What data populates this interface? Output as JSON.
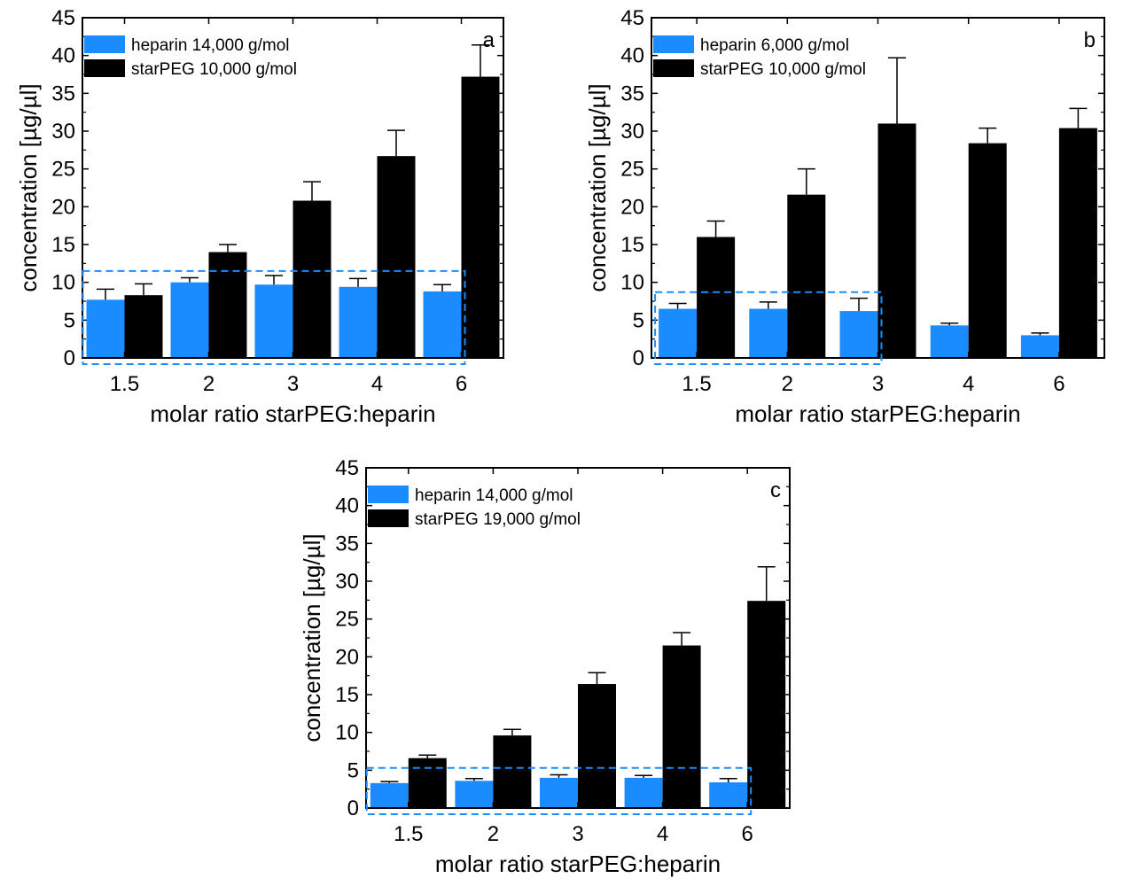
{
  "colors": {
    "heparin": "#1a8cff",
    "starpeg": "#000000",
    "highlight": "#1a8cff"
  },
  "chart_data": [
    {
      "type": "bar",
      "panel_letter": "a",
      "categories": [
        "1.5",
        "2",
        "3",
        "4",
        "6"
      ],
      "series": [
        {
          "name": "heparin 14,000 g/mol",
          "values": [
            7.7,
            10.0,
            9.7,
            9.4,
            8.8
          ],
          "errors": [
            1.4,
            0.6,
            1.2,
            1.1,
            0.9
          ]
        },
        {
          "name": "starPEG 10,000 g/mol",
          "values": [
            8.3,
            14.0,
            20.8,
            26.7,
            37.2
          ],
          "errors": [
            1.5,
            1.0,
            2.5,
            3.4,
            4.2
          ]
        }
      ],
      "xlabel": "molar ratio starPEG:heparin",
      "ylabel": "concentration [µg/µl]",
      "ylim": [
        0,
        45
      ],
      "yticks": [
        "0",
        "5",
        "10",
        "15",
        "20",
        "25",
        "30",
        "35",
        "40",
        "45"
      ],
      "legend_position": "top-left",
      "highlight_box": {
        "x_from": "1.5",
        "x_to": "6",
        "y_max": 11.5
      }
    },
    {
      "type": "bar",
      "panel_letter": "b",
      "categories": [
        "1.5",
        "2",
        "3",
        "4",
        "6"
      ],
      "series": [
        {
          "name": "heparin 6,000 g/mol",
          "values": [
            6.5,
            6.5,
            6.2,
            4.3,
            3.0
          ],
          "errors": [
            0.7,
            0.9,
            1.7,
            0.3,
            0.3
          ]
        },
        {
          "name": "starPEG 10,000 g/mol",
          "values": [
            16.0,
            21.6,
            31.0,
            28.4,
            30.4
          ],
          "errors": [
            2.1,
            3.4,
            8.7,
            2.0,
            2.6
          ]
        }
      ],
      "xlabel": "molar ratio starPEG:heparin",
      "ylabel": "concentration [µg/µl]",
      "ylim": [
        0,
        45
      ],
      "yticks": [
        "0",
        "5",
        "10",
        "15",
        "20",
        "25",
        "30",
        "35",
        "40",
        "45"
      ],
      "legend_position": "top-left",
      "highlight_box": {
        "x_from": "1.5",
        "x_to": "3",
        "y_max": 8.7
      }
    },
    {
      "type": "bar",
      "panel_letter": "c",
      "categories": [
        "1.5",
        "2",
        "3",
        "4",
        "6"
      ],
      "series": [
        {
          "name": "heparin 14,000 g/mol",
          "values": [
            3.3,
            3.6,
            4.0,
            4.0,
            3.4
          ],
          "errors": [
            0.2,
            0.3,
            0.4,
            0.3,
            0.5
          ]
        },
        {
          "name": "starPEG 19,000 g/mol",
          "values": [
            6.6,
            9.6,
            16.4,
            21.5,
            27.4
          ],
          "errors": [
            0.4,
            0.8,
            1.5,
            1.7,
            4.5
          ]
        }
      ],
      "xlabel": "molar ratio starPEG:heparin",
      "ylabel": "concentration [µg/µl]",
      "ylim": [
        0,
        45
      ],
      "yticks": [
        "0",
        "5",
        "10",
        "15",
        "20",
        "25",
        "30",
        "35",
        "40",
        "45"
      ],
      "legend_position": "top-left",
      "highlight_box": {
        "x_from": "1.5",
        "x_to": "6",
        "y_max": 5.3
      }
    }
  ]
}
